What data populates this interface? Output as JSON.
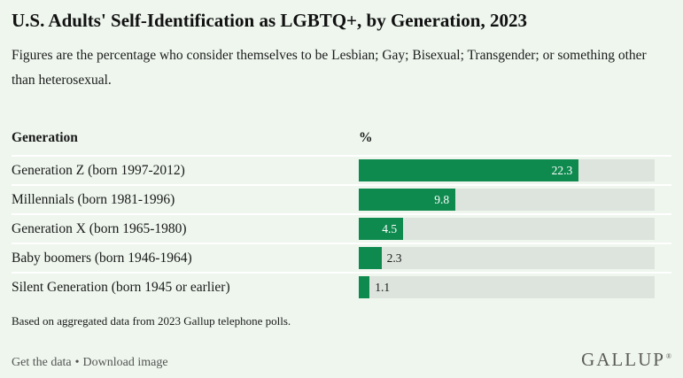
{
  "header": {
    "title": "U.S. Adults' Self-Identification as LGBTQ+, by Generation, 2023",
    "subtitle": "Figures are the percentage who consider themselves to be Lesbian; Gay; Bisexual; Transgender; or something other than heterosexual."
  },
  "table": {
    "generation_column_header": "Generation",
    "percent_column_header": "%"
  },
  "chart_data": {
    "type": "bar",
    "orientation": "horizontal",
    "title": "U.S. Adults' Self-Identification as LGBTQ+, by Generation, 2023",
    "categories": [
      "Generation Z (born 1997-2012)",
      "Millennials (born 1981-1996)",
      "Generation X (born 1965-1980)",
      "Baby boomers (born 1946-1964)",
      "Silent Generation (born 1945 or earlier)"
    ],
    "values": [
      22.3,
      9.8,
      4.5,
      2.3,
      1.1
    ],
    "value_labels": [
      "22.3",
      "9.8",
      "4.5",
      "2.3",
      "1.1"
    ],
    "value_label_positions": [
      "inside",
      "inside",
      "inside",
      "outside",
      "outside"
    ],
    "xlim": [
      0,
      30
    ],
    "xlabel": "%",
    "ylabel": "Generation",
    "grid": false,
    "legend": false,
    "bar_color": "#0f8a4f",
    "track_color": "#dde4dd"
  },
  "footnote": "Based on aggregated data from 2023 Gallup telephone polls.",
  "footer": {
    "get_data_label": "Get the data",
    "separator": "•",
    "download_image_label": "Download image",
    "brand": "GALLUP",
    "brand_mark": "®"
  },
  "colors": {
    "background": "#eef6ee",
    "bar_green": "#0f8a4f",
    "bar_track": "#dde4dd",
    "row_divider": "#ffffff",
    "text_primary": "#1a1a1a",
    "footer_text": "#545454",
    "brand_gray": "#5c5c56"
  }
}
